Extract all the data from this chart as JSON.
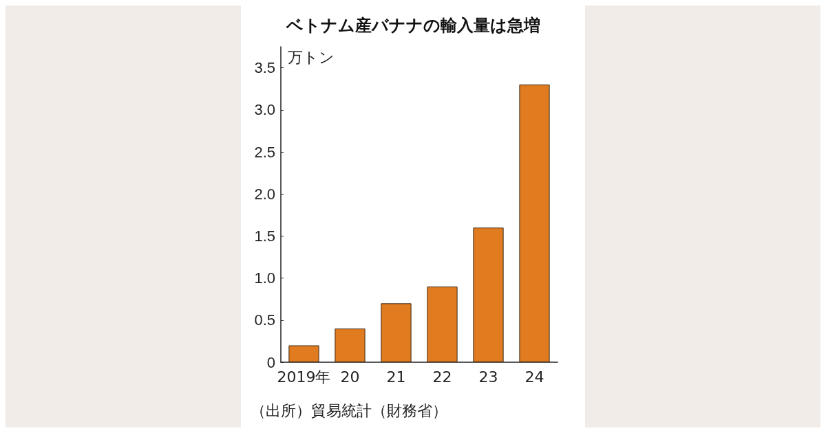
{
  "chart_data": {
    "type": "bar",
    "title": "ベトナム産バナナの輸入量は急増",
    "ylabel": "万トン",
    "categories": [
      "2019年",
      "20",
      "21",
      "22",
      "23",
      "24"
    ],
    "values": [
      0.2,
      0.4,
      0.7,
      0.9,
      1.6,
      3.3
    ],
    "color": "#e07b20",
    "ylim": [
      0,
      3.75
    ],
    "yticks": [
      0,
      0.5,
      {
        "value": 1,
        "label": "1.0"
      },
      1.5,
      {
        "value": 2,
        "label": "2.0"
      },
      2.5,
      {
        "value": 3,
        "label": "3.0"
      },
      3.5
    ],
    "grid": false,
    "annotations": [
      "（出所）貿易統計（財務省）"
    ]
  }
}
